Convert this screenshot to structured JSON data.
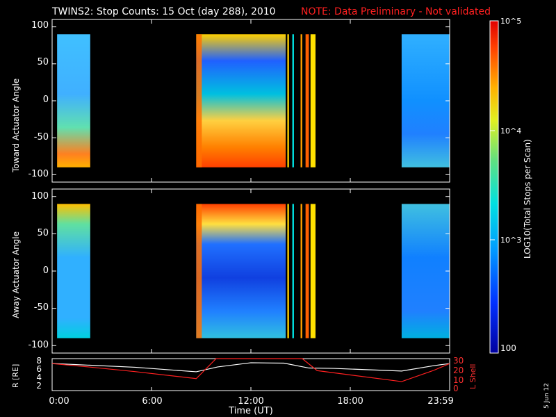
{
  "title": {
    "main": "TWINS2: Stop Counts: 15 Oct (day 288), 2010",
    "note": "NOTE: Data Preliminary - Not validated"
  },
  "side_date": "5 Jun 12",
  "colors": {
    "background": "#000000",
    "axis": "#ffffff",
    "lshell": "#ff2020",
    "radius": "#ffffff"
  },
  "chart_data": [
    {
      "type": "heatmap",
      "ylabel": "Toward Actuator Angle",
      "ylim": [
        -110,
        110
      ],
      "y_ticks": [
        "100",
        "50",
        "0",
        "-50",
        "-100"
      ],
      "data_ylim": [
        -90,
        90
      ],
      "xlim_hours": [
        0,
        24
      ],
      "data_blocks_hours": [
        [
          0.3,
          2.3
        ],
        [
          8.7,
          14.1
        ],
        [
          14.2,
          14.3
        ],
        [
          14.5,
          14.6
        ],
        [
          15.0,
          15.1
        ],
        [
          15.3,
          15.5
        ],
        [
          15.6,
          15.9
        ],
        [
          21.1,
          24.0
        ]
      ]
    },
    {
      "type": "heatmap",
      "ylabel": "Away Actuator Angle",
      "ylim": [
        -110,
        110
      ],
      "y_ticks": [
        "100",
        "50",
        "0",
        "-50",
        "-100"
      ],
      "data_ylim": [
        -90,
        90
      ],
      "xlim_hours": [
        0,
        24
      ],
      "data_blocks_hours": [
        [
          0.3,
          2.3
        ],
        [
          8.7,
          14.1
        ],
        [
          14.2,
          14.3
        ],
        [
          14.5,
          14.6
        ],
        [
          15.0,
          15.1
        ],
        [
          15.3,
          15.5
        ],
        [
          15.6,
          15.9
        ],
        [
          21.1,
          24.0
        ]
      ]
    },
    {
      "type": "line",
      "ylabel_left": "R [RE]",
      "ylabel_right": "L Shell",
      "left_ticks": [
        "8",
        "6",
        "4",
        "2"
      ],
      "right_ticks": [
        "30",
        "20",
        "10",
        "0"
      ],
      "x_ticks": [
        "0:00",
        "6:00",
        "12:00",
        "18:00",
        "23:59"
      ],
      "xlabel": "Time (UT)",
      "series": [
        {
          "name": "R [RE]",
          "x": [
            0,
            2,
            5,
            8.7,
            10,
            12,
            14,
            15.5,
            17,
            21.1,
            23,
            24
          ],
          "y": [
            7.2,
            6.8,
            6.2,
            5.0,
            6.3,
            7.4,
            7.3,
            6.0,
            5.9,
            5.2,
            6.6,
            7.2
          ]
        },
        {
          "name": "L Shell",
          "x": [
            0,
            2,
            5,
            8.7,
            9.9,
            15.1,
            16,
            21.1,
            23,
            24
          ],
          "y": [
            27,
            24,
            19,
            12,
            32,
            32,
            20,
            9,
            20,
            27
          ]
        }
      ]
    }
  ],
  "colorbar": {
    "label": "LOG10(Total Stops per Scan)",
    "ticks": [
      "10^5",
      "10^4",
      "10^3",
      "100"
    ]
  }
}
